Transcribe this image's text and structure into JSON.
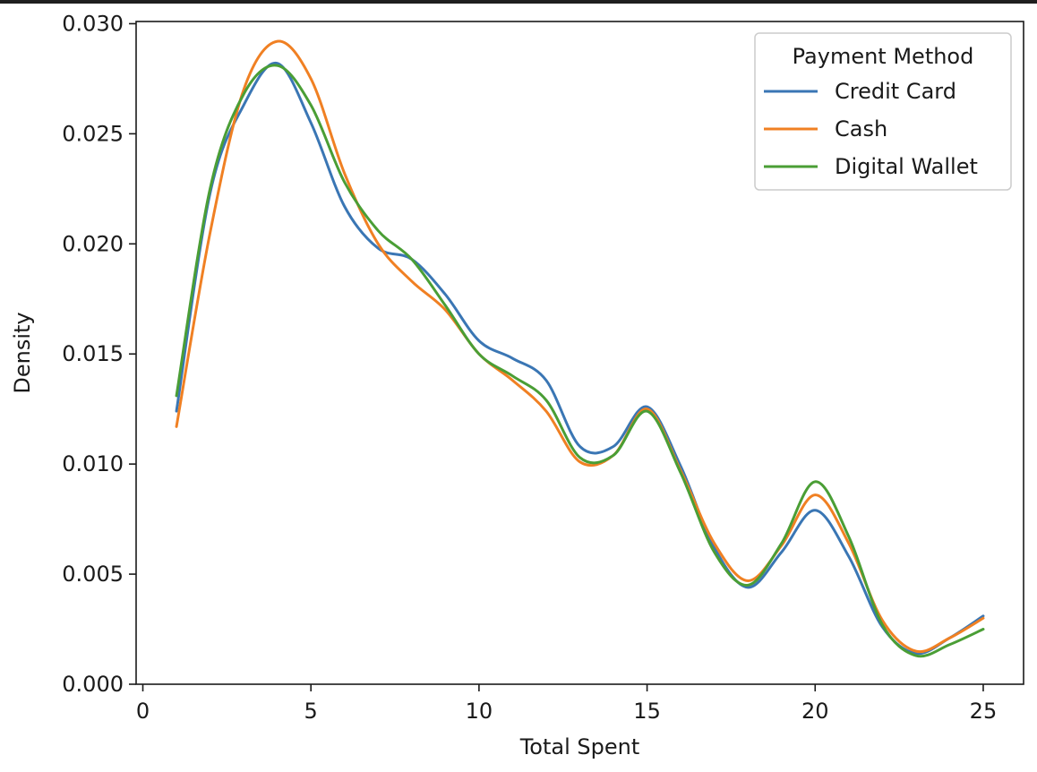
{
  "chart_data": {
    "type": "line",
    "xlabel": "Total Spent",
    "ylabel": "Density",
    "xlim": [
      -0.2,
      26.2
    ],
    "ylim": [
      0,
      0.0301
    ],
    "xticks": [
      0,
      5,
      10,
      15,
      20,
      25
    ],
    "xtick_labels": [
      "0",
      "5",
      "10",
      "15",
      "20",
      "25"
    ],
    "yticks": [
      0,
      0.005,
      0.01,
      0.015,
      0.02,
      0.025,
      0.03
    ],
    "ytick_labels": [
      "0.000",
      "0.005",
      "0.010",
      "0.015",
      "0.020",
      "0.025",
      "0.030"
    ],
    "grid": false,
    "legend": {
      "title": "Payment Method",
      "position": "upper-right"
    },
    "x": [
      1,
      2,
      3,
      4,
      5,
      6,
      7,
      8,
      9,
      10,
      11,
      12,
      13,
      14,
      15,
      16,
      17,
      18,
      19,
      20,
      21,
      22,
      23,
      24,
      25
    ],
    "series": [
      {
        "name": "Credit Card",
        "color": "#3a76b4",
        "values": [
          0.0124,
          0.0223,
          0.0263,
          0.0282,
          0.0255,
          0.0217,
          0.0198,
          0.0193,
          0.0177,
          0.0156,
          0.0148,
          0.0138,
          0.0108,
          0.0108,
          0.0126,
          0.0099,
          0.0062,
          0.0044,
          0.006,
          0.0079,
          0.0058,
          0.0026,
          0.0014,
          0.0021,
          0.0031
        ]
      },
      {
        "name": "Cash",
        "color": "#f08023",
        "values": [
          0.0117,
          0.0205,
          0.027,
          0.0292,
          0.0275,
          0.0232,
          0.02,
          0.0183,
          0.017,
          0.015,
          0.0138,
          0.0124,
          0.0101,
          0.0104,
          0.0125,
          0.0097,
          0.0064,
          0.0047,
          0.0063,
          0.0086,
          0.0064,
          0.0029,
          0.0015,
          0.0021,
          0.003
        ]
      },
      {
        "name": "Digital Wallet",
        "color": "#4a9e35",
        "values": [
          0.0131,
          0.0225,
          0.0268,
          0.0281,
          0.0263,
          0.0228,
          0.0206,
          0.0193,
          0.0172,
          0.015,
          0.014,
          0.0129,
          0.0103,
          0.0104,
          0.0124,
          0.0096,
          0.006,
          0.0045,
          0.0064,
          0.0092,
          0.0067,
          0.0027,
          0.0013,
          0.0018,
          0.0025
        ]
      }
    ]
  }
}
